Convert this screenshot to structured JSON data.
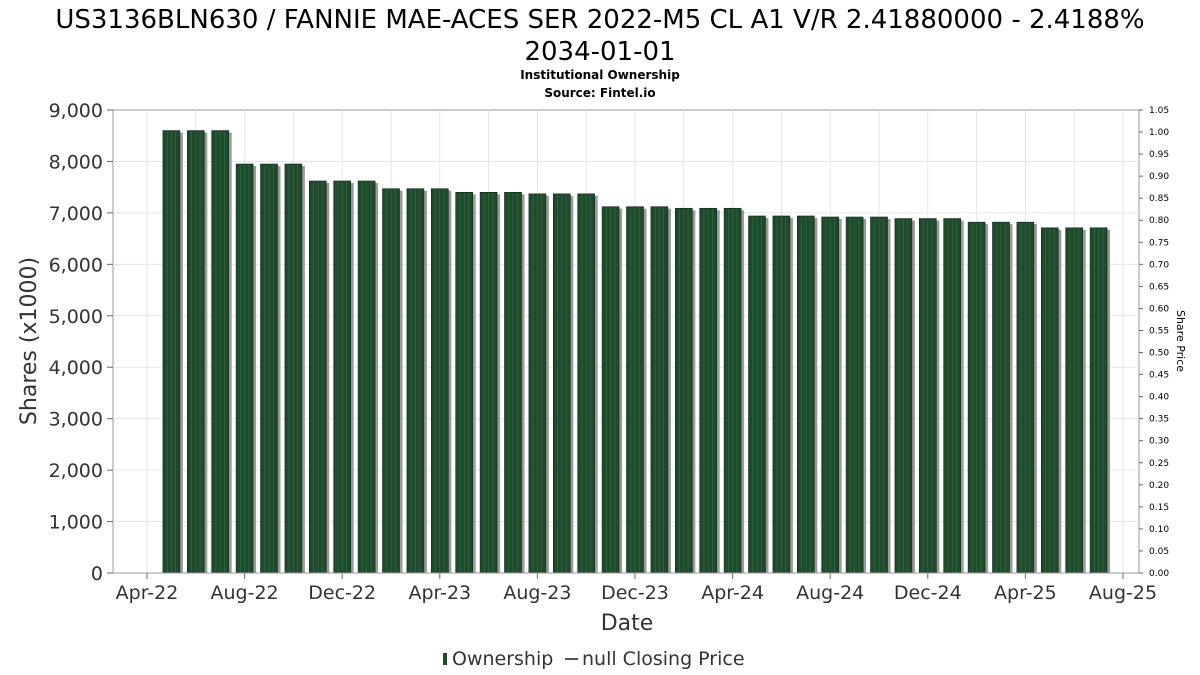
{
  "chart_data": {
    "type": "bar",
    "title_line1": "US3136BLN630 / FANNIE MAE-ACES SER 2022-M5 CL A1 V/R 2.41880000 - 2.4188%",
    "title_line2": "2034-01-01",
    "subtitle_line1": "Institutional Ownership",
    "subtitle_line2": "Source: Fintel.io",
    "xlabel": "Date",
    "ylabel": "Shares (x1000)",
    "y2label": "Share Price",
    "ylim": [
      0,
      9000
    ],
    "y2lim": [
      0,
      1.05
    ],
    "grid": true,
    "legend_position": "bottom-center",
    "x_ticks": [
      "Apr-22",
      "Aug-22",
      "Dec-22",
      "Apr-23",
      "Aug-23",
      "Dec-23",
      "Apr-24",
      "Aug-24",
      "Dec-24",
      "Apr-25",
      "Aug-25"
    ],
    "y_ticks": [
      "0",
      "1,000",
      "2,000",
      "3,000",
      "4,000",
      "5,000",
      "6,000",
      "7,000",
      "8,000",
      "9,000"
    ],
    "y2_ticks": [
      "0.00",
      "0.05",
      "0.10",
      "0.15",
      "0.20",
      "0.25",
      "0.30",
      "0.35",
      "0.40",
      "0.45",
      "0.50",
      "0.55",
      "0.60",
      "0.65",
      "0.70",
      "0.75",
      "0.80",
      "0.85",
      "0.90",
      "0.95",
      "1.00",
      "1.05"
    ],
    "series": [
      {
        "name": "Ownership",
        "color": "#1f4a2c",
        "x": [
          "2022-05",
          "2022-06",
          "2022-07",
          "2022-08",
          "2022-09",
          "2022-10",
          "2022-11",
          "2022-12",
          "2023-01",
          "2023-02",
          "2023-03",
          "2023-04",
          "2023-05",
          "2023-06",
          "2023-07",
          "2023-08",
          "2023-09",
          "2023-10",
          "2023-11",
          "2023-12",
          "2024-01",
          "2024-02",
          "2024-03",
          "2024-04",
          "2024-05",
          "2024-06",
          "2024-07",
          "2024-08",
          "2024-09",
          "2024-10",
          "2024-11",
          "2024-12",
          "2025-01",
          "2025-02",
          "2025-03",
          "2025-04",
          "2025-05",
          "2025-06",
          "2025-07"
        ],
        "values": [
          8600,
          8600,
          8600,
          7950,
          7950,
          7950,
          7620,
          7620,
          7620,
          7470,
          7470,
          7470,
          7400,
          7400,
          7400,
          7370,
          7370,
          7370,
          7120,
          7120,
          7120,
          7090,
          7090,
          7090,
          6940,
          6940,
          6940,
          6920,
          6920,
          6920,
          6890,
          6890,
          6890,
          6820,
          6820,
          6820,
          6710,
          6710,
          6710
        ]
      },
      {
        "name": "null Closing Price",
        "color": "#555555",
        "values": []
      }
    ]
  }
}
